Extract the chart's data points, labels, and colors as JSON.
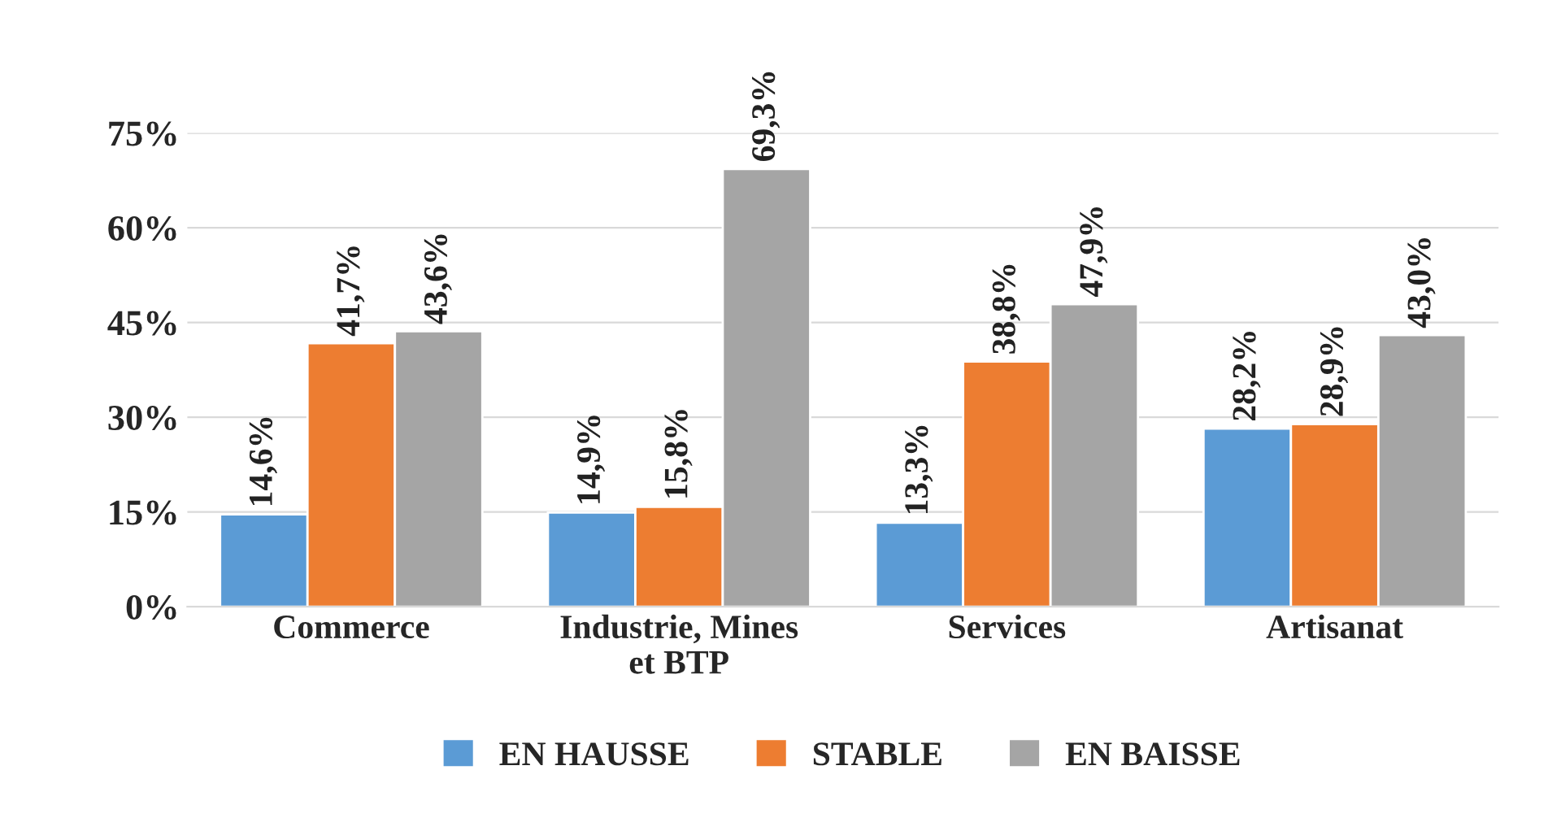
{
  "chart_data": {
    "type": "bar",
    "categories": [
      "Commerce",
      "Industrie, Mines\net BTP",
      "Services",
      "Artisanat"
    ],
    "series": [
      {
        "name": "EN HAUSSE",
        "color": "#5b9bd5",
        "values": [
          14.6,
          14.9,
          13.3,
          28.2
        ],
        "value_labels": [
          "14,6%",
          "14,9%",
          "13,3%",
          "28,2%"
        ]
      },
      {
        "name": "STABLE",
        "color": "#ed7d31",
        "values": [
          41.7,
          15.8,
          38.8,
          28.9
        ],
        "value_labels": [
          "41,7%",
          "15,8%",
          "38,8%",
          "28,9%"
        ]
      },
      {
        "name": "EN BAISSE",
        "color": "#a5a5a5",
        "values": [
          43.6,
          69.3,
          47.9,
          43.0
        ],
        "value_labels": [
          "43,6%",
          "69,3%",
          "47,9%",
          "43,0%"
        ]
      }
    ],
    "ylim": [
      0,
      75
    ],
    "yticks": [
      {
        "value": 0,
        "label": "0%"
      },
      {
        "value": 15,
        "label": "15%"
      },
      {
        "value": 30,
        "label": "30%"
      },
      {
        "value": 45,
        "label": "45%"
      },
      {
        "value": 60,
        "label": "60%"
      },
      {
        "value": 75,
        "label": "75%"
      }
    ],
    "grid": "y",
    "legend": "bottom"
  }
}
